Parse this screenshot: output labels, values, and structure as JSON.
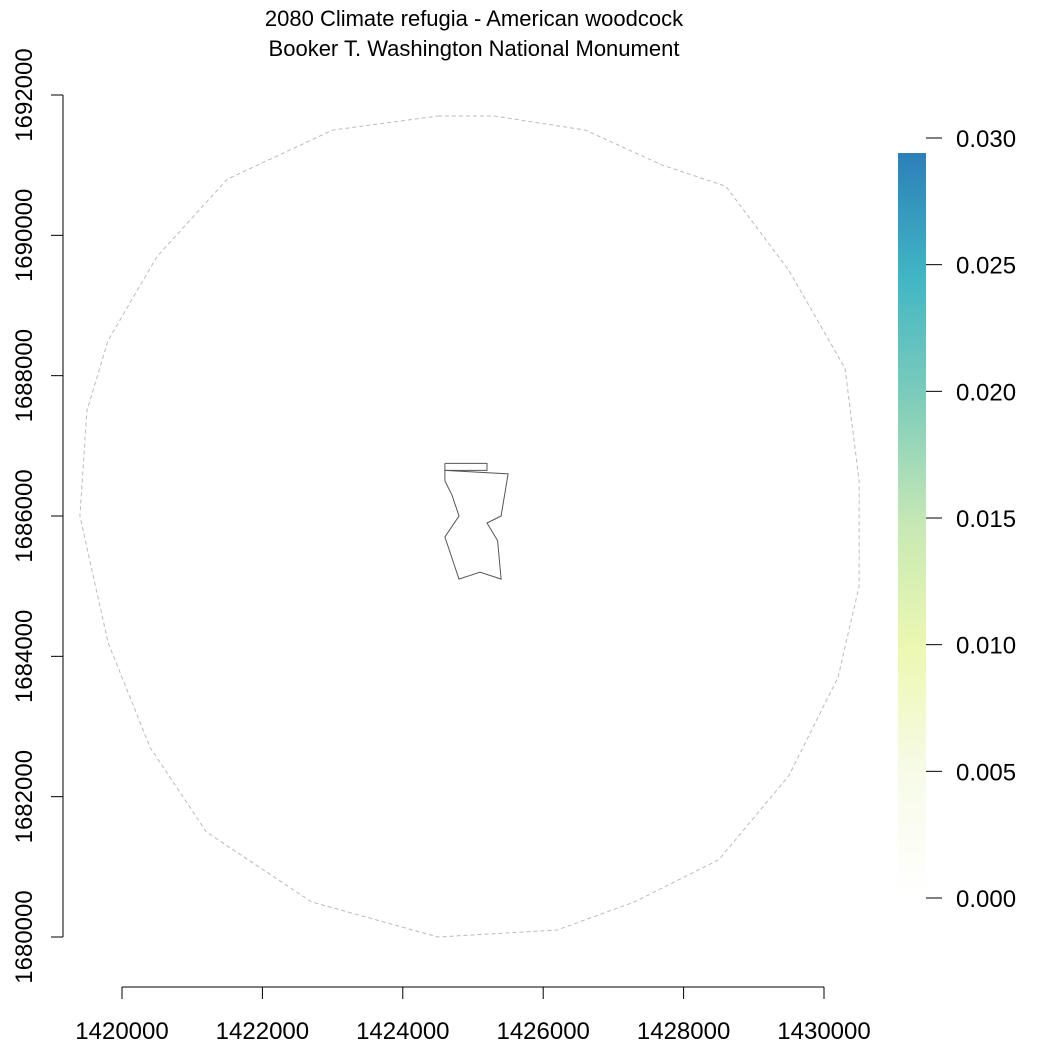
{
  "title": {
    "line1": "2080 Climate refugia - American woodcock",
    "line2": "Booker T. Washington National Monument"
  },
  "chart_data": {
    "type": "map",
    "x_axis": {
      "range": [
        1419000,
        1430500
      ],
      "ticks": [
        1420000,
        1422000,
        1424000,
        1426000,
        1428000,
        1430000
      ],
      "tick_labels": [
        "1420000",
        "1422000",
        "1424000",
        "1426000",
        "1428000",
        "1430000"
      ]
    },
    "y_axis": {
      "range": [
        1680000,
        1692000
      ],
      "ticks": [
        1680000,
        1682000,
        1684000,
        1686000,
        1688000,
        1690000,
        1692000
      ],
      "tick_labels": [
        "1680000",
        "1682000",
        "1684000",
        "1686000",
        "1688000",
        "1690000",
        "1692000"
      ]
    },
    "legend": {
      "placement": "right",
      "min": 0.0,
      "max": 0.029,
      "ticks": [
        0.0,
        0.005,
        0.01,
        0.015,
        0.02,
        0.025,
        0.03
      ],
      "tick_labels": [
        "0.000",
        "0.005",
        "0.010",
        "0.015",
        "0.020",
        "0.025",
        "0.030"
      ],
      "colors": [
        "#ffffff",
        "#f7fbe8",
        "#edf8b1",
        "#c7e9b4",
        "#7fcdbb",
        "#41b6c4",
        "#2c7fb8"
      ]
    },
    "buffer_circle": {
      "stroke_color": "#bbbbbb",
      "dashed": true,
      "points": [
        [
          1424500,
          1691700
        ],
        [
          1425300,
          1691700
        ],
        [
          1426600,
          1691500
        ],
        [
          1427700,
          1691000
        ],
        [
          1428600,
          1690700
        ],
        [
          1429500,
          1689500
        ],
        [
          1430300,
          1688100
        ],
        [
          1430500,
          1686500
        ],
        [
          1430500,
          1685000
        ],
        [
          1430200,
          1683700
        ],
        [
          1429500,
          1682300
        ],
        [
          1428500,
          1681100
        ],
        [
          1427300,
          1680500
        ],
        [
          1426200,
          1680100
        ],
        [
          1424500,
          1680000
        ],
        [
          1422700,
          1680500
        ],
        [
          1421200,
          1681500
        ],
        [
          1420400,
          1682700
        ],
        [
          1419800,
          1684200
        ],
        [
          1419400,
          1686000
        ],
        [
          1419500,
          1687500
        ],
        [
          1419800,
          1688500
        ],
        [
          1420500,
          1689700
        ],
        [
          1421500,
          1690800
        ],
        [
          1423000,
          1691500
        ],
        [
          1424500,
          1691700
        ]
      ]
    },
    "park_boundary": {
      "stroke_color": "#555555",
      "points": [
        [
          1424600,
          1686650
        ],
        [
          1424600,
          1686500
        ],
        [
          1424700,
          1686300
        ],
        [
          1424800,
          1686000
        ],
        [
          1424600,
          1685700
        ],
        [
          1424800,
          1685100
        ],
        [
          1425100,
          1685200
        ],
        [
          1425400,
          1685100
        ],
        [
          1425350,
          1685650
        ],
        [
          1425200,
          1685900
        ],
        [
          1425400,
          1686000
        ],
        [
          1425500,
          1686600
        ],
        [
          1424600,
          1686650
        ]
      ]
    },
    "park_inset_rect": {
      "stroke_color": "#555555",
      "points": [
        [
          1424600,
          1686750
        ],
        [
          1425200,
          1686750
        ],
        [
          1425200,
          1686650
        ],
        [
          1424600,
          1686650
        ],
        [
          1424600,
          1686750
        ]
      ]
    }
  }
}
